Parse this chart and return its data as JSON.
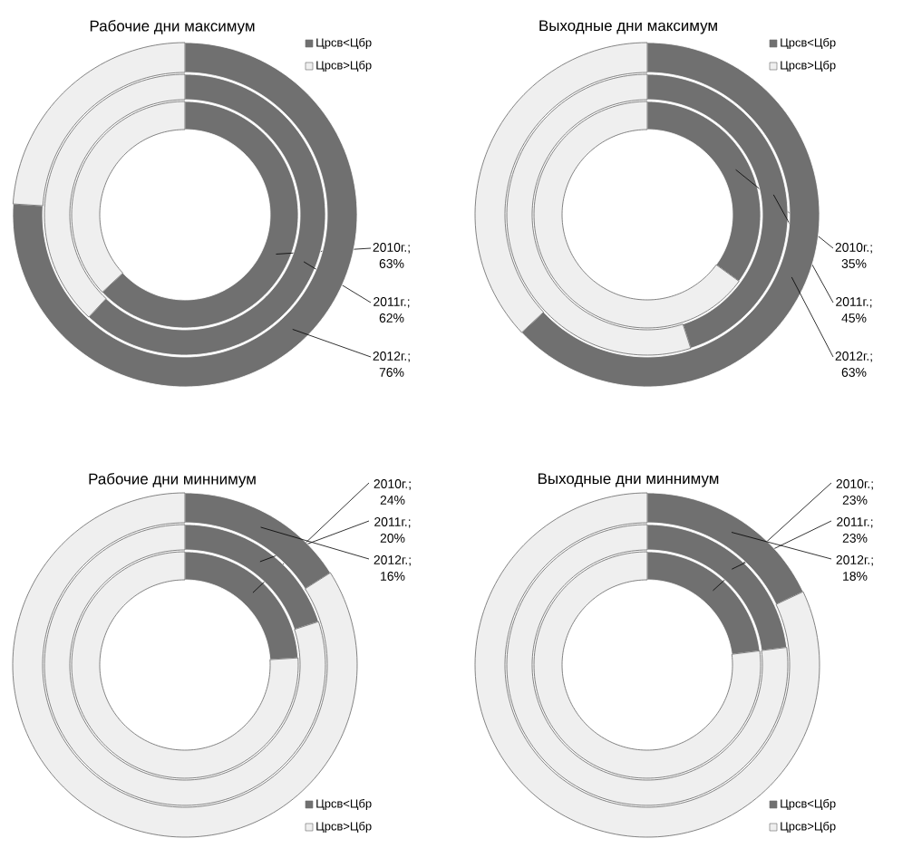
{
  "chart_data": [
    {
      "type": "donut",
      "title": "Рабочие дни максимум",
      "categories": [
        "Црсв<Цбр",
        "Црсв>Цбр"
      ],
      "colors": [
        "#707070",
        "#efefef"
      ],
      "legend": "top right",
      "series": [
        {
          "values": [
            63,
            37
          ],
          "value_labels": [
            "2010г.; 63%",
            null
          ]
        },
        {
          "values": [
            62,
            38
          ],
          "value_labels": [
            "2011г.; 62%",
            null
          ]
        },
        {
          "values": [
            76,
            24
          ],
          "value_labels": [
            "2012г.; 76%",
            null
          ]
        }
      ]
    },
    {
      "type": "donut",
      "title": "Выходные дни максимум",
      "categories": [
        "Црсв<Цбр",
        "Црсв>Цбр"
      ],
      "colors": [
        "#707070",
        "#efefef"
      ],
      "legend": "top right",
      "series": [
        {
          "values": [
            35,
            65
          ],
          "value_labels": [
            "2010г.; 35%",
            null
          ]
        },
        {
          "values": [
            45,
            55
          ],
          "value_labels": [
            "2011г.; 45%",
            null
          ]
        },
        {
          "values": [
            63,
            37
          ],
          "value_labels": [
            "2012г.; 63%",
            null
          ]
        }
      ]
    },
    {
      "type": "donut",
      "title": "Рабочие дни миннимум",
      "categories": [
        "Црсв<Цбр",
        "Црсв>Цбр"
      ],
      "colors": [
        "#707070",
        "#efefef"
      ],
      "legend": "bottom right",
      "series": [
        {
          "values": [
            24,
            76
          ],
          "value_labels": [
            "2010г.; 24%",
            null
          ]
        },
        {
          "values": [
            20,
            80
          ],
          "value_labels": [
            "2011г.; 20%",
            null
          ]
        },
        {
          "values": [
            16,
            84
          ],
          "value_labels": [
            "2012г.; 16%",
            null
          ]
        }
      ]
    },
    {
      "type": "donut",
      "title": "Выходные дни миннимум",
      "categories": [
        "Црсв<Цбр",
        "Црсв>Цбр"
      ],
      "colors": [
        "#707070",
        "#efefef"
      ],
      "legend": "bottom right",
      "series": [
        {
          "values": [
            23,
            77
          ],
          "value_labels": [
            "2010г.; 23%",
            null
          ]
        },
        {
          "values": [
            23,
            77
          ],
          "value_labels": [
            "2011г.; 23%",
            null
          ]
        },
        {
          "values": [
            18,
            82
          ],
          "value_labels": [
            "2012г.; 18%",
            null
          ]
        }
      ]
    }
  ]
}
